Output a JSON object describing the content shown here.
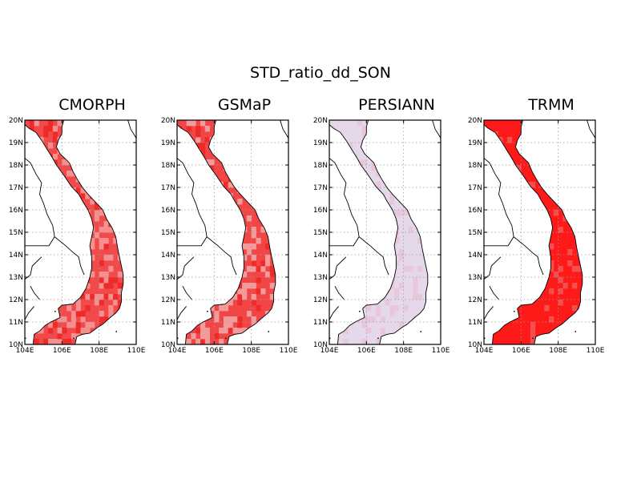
{
  "title": "STD_ratio_dd_SON",
  "lon_ticks": [
    "104E",
    "106E",
    "108E",
    "110E"
  ],
  "lat_ticks": [
    "10N",
    "11N",
    "12N",
    "13N",
    "14N",
    "15N",
    "16N",
    "17N",
    "18N",
    "19N",
    "20N"
  ],
  "extent": {
    "lon_min": 104,
    "lon_max": 110,
    "lat_min": 10,
    "lat_max": 20
  },
  "panels": [
    {
      "name": "CMORPH",
      "fill": "#f24a4a",
      "light": "#f49090",
      "level": "medium"
    },
    {
      "name": "GSMaP",
      "fill": "#f24646",
      "light": "#f39a9a",
      "level": "medium"
    },
    {
      "name": "PERSIANN",
      "fill": "#e4d8ea",
      "light": "#e8c8d8",
      "level": "low"
    },
    {
      "name": "TRMM",
      "fill": "#ff1a1a",
      "light": "#f25050",
      "level": "high"
    }
  ]
}
